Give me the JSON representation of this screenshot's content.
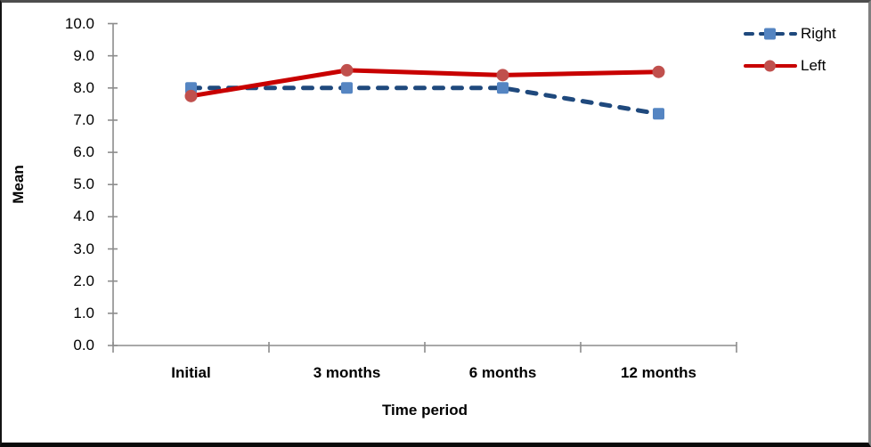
{
  "chart_data": {
    "type": "line",
    "title": "",
    "categories": [
      "Initial",
      "3 months",
      "6 months",
      "12 months"
    ],
    "series": [
      {
        "name": "Right",
        "values": [
          8.0,
          8.0,
          8.0,
          7.2
        ],
        "color": "#1F497D",
        "marker_color": "#5585C2",
        "marker": "square",
        "line_style": "dashed"
      },
      {
        "name": "Left",
        "values": [
          7.75,
          8.55,
          8.4,
          8.5
        ],
        "color": "#C80000",
        "marker_color": "#C0504D",
        "marker": "circle",
        "line_style": "solid"
      }
    ],
    "xlabel": "Time period",
    "ylabel": "Mean",
    "ylim": [
      0,
      10
    ],
    "ytick_step": 1.0,
    "ytick_labels": [
      "0.0",
      "1.0",
      "2.0",
      "3.0",
      "4.0",
      "5.0",
      "6.0",
      "7.0",
      "8.0",
      "9.0",
      "10.0"
    ],
    "grid": false,
    "legend_position": "top-right",
    "axis_color": "#8C8C8C"
  }
}
